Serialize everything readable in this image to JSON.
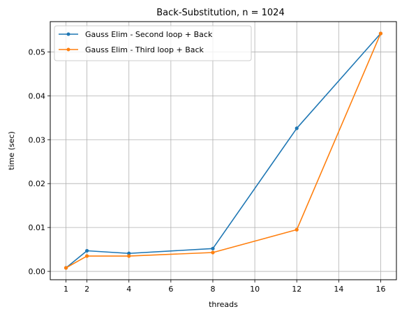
{
  "chart_data": {
    "type": "line",
    "title": "Back-Substitution, n = 1024",
    "xlabel": "threads",
    "ylabel": "time (sec)",
    "xlim": [
      0.25,
      16.75
    ],
    "ylim": [
      -0.0019,
      0.0569
    ],
    "x_ticks": [
      1,
      2,
      4,
      6,
      8,
      10,
      12,
      14,
      16
    ],
    "y_ticks": [
      0.0,
      0.01,
      0.02,
      0.03,
      0.04,
      0.05
    ],
    "y_tick_labels": [
      "0.00",
      "0.01",
      "0.02",
      "0.03",
      "0.04",
      "0.05"
    ],
    "grid": true,
    "legend_position": "top-left",
    "x": [
      1,
      2,
      4,
      8,
      12,
      16
    ],
    "series": [
      {
        "name": "Gauss Elim - Second loop + Back",
        "color": "#1f77b4",
        "values": [
          0.0008,
          0.0047,
          0.0041,
          0.0052,
          0.0326,
          0.0542
        ]
      },
      {
        "name": "Gauss Elim - Third loop + Back",
        "color": "#ff7f0e",
        "values": [
          0.0008,
          0.0035,
          0.0035,
          0.0043,
          0.0095,
          0.0542
        ]
      }
    ]
  }
}
